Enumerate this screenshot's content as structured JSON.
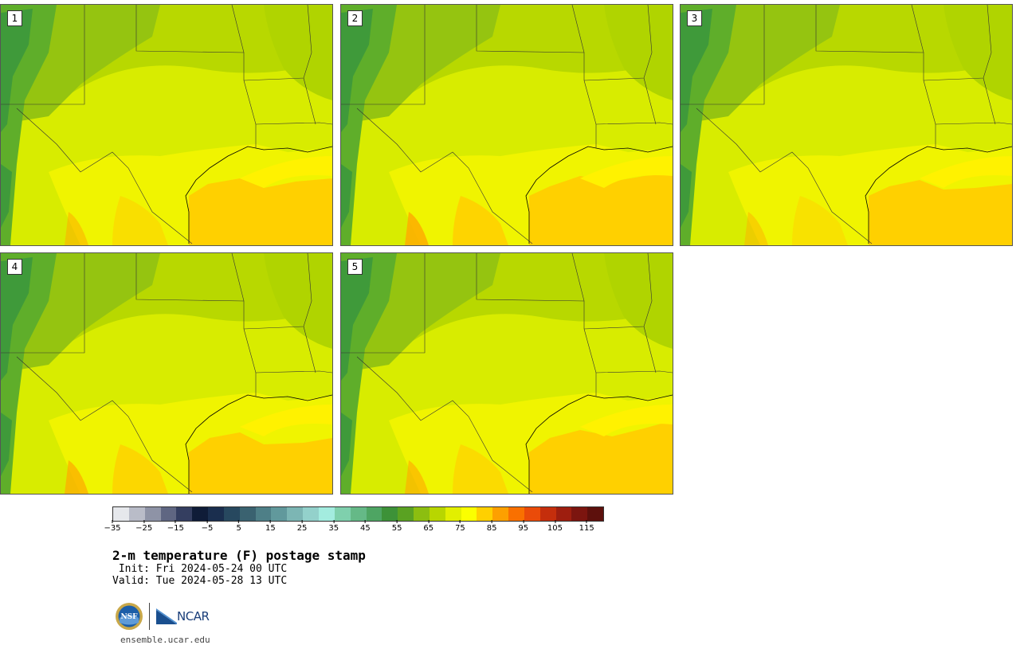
{
  "panels": [
    {
      "label": "1"
    },
    {
      "label": "2"
    },
    {
      "label": "3"
    },
    {
      "label": "4"
    },
    {
      "label": "5"
    }
  ],
  "colorbar": {
    "colors": [
      "#e6e8ec",
      "#b9bcc8",
      "#8e93a6",
      "#5f6682",
      "#343e60",
      "#0f1c38",
      "#1a2e4e",
      "#27485f",
      "#3a6270",
      "#4e7f87",
      "#61999c",
      "#7cb6b4",
      "#93d1cb",
      "#a3ecdf",
      "#7fd0ad",
      "#65b987",
      "#4ea563",
      "#3d9238",
      "#5aa222",
      "#8cbe10",
      "#b8d600",
      "#e2ef00",
      "#fbff00",
      "#ffd000",
      "#fda000",
      "#f97000",
      "#ea4b09",
      "#c52e0c",
      "#9e1e0f",
      "#7c150f",
      "#5d100c"
    ],
    "tick_labels": [
      "−35",
      "−25",
      "−15",
      "−5",
      "5",
      "15",
      "25",
      "35",
      "45",
      "55",
      "65",
      "75",
      "85",
      "95",
      "105",
      "115"
    ]
  },
  "title": "2-m temperature (F) postage stamp",
  "init": " Init: Fri 2024-05-24 00 UTC",
  "valid": "Valid: Tue 2024-05-28 13 UTC",
  "logos": {
    "ncar_text": "NCAR",
    "nsf_text": "NSF"
  },
  "site": "ensemble.ucar.edu"
}
